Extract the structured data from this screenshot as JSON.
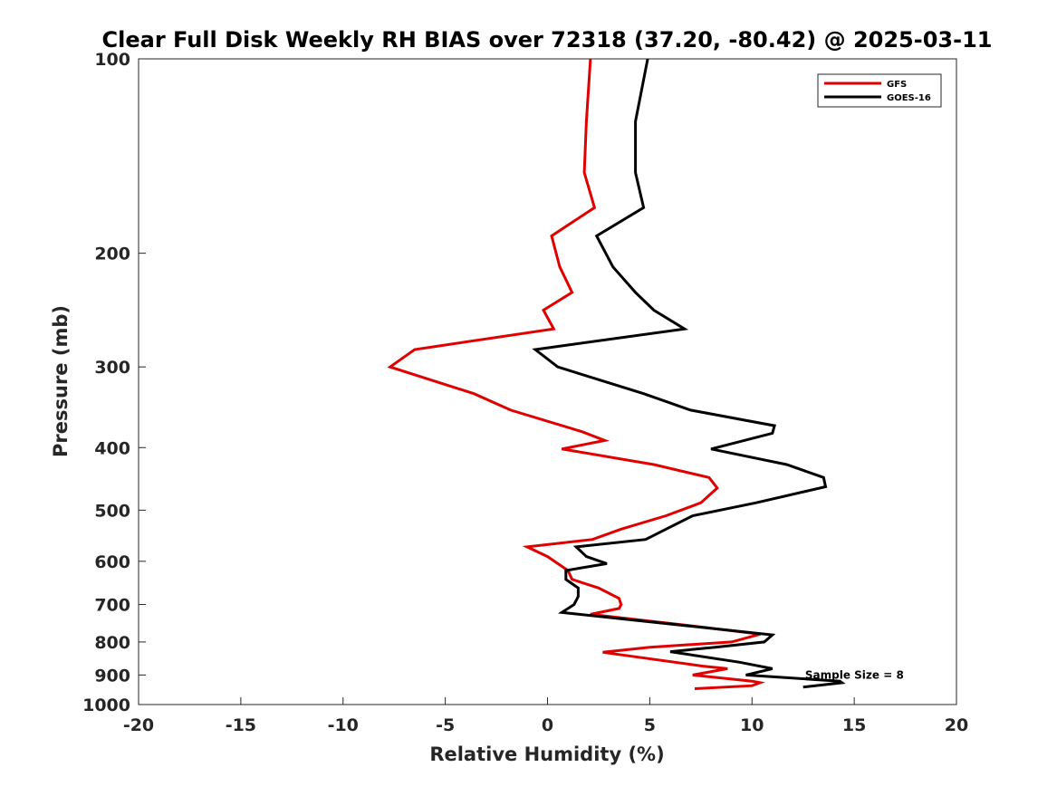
{
  "chart_data": {
    "type": "line",
    "title": "Clear Full Disk Weekly RH BIAS over 72318 (37.20, -80.42) @ 2025-03-11",
    "xlabel": "Relative Humidity (%)",
    "ylabel": "Pressure (mb)",
    "xlim": [
      -20,
      20
    ],
    "ylim": [
      1000,
      100
    ],
    "yscale": "log",
    "grid": false,
    "legend_position": "top-right",
    "x_ticks": [
      -20,
      -15,
      -10,
      -5,
      0,
      5,
      10,
      15,
      20
    ],
    "x_tick_labels": [
      "-20",
      "-15",
      "-10",
      "-5",
      "0",
      "5",
      "10",
      "15",
      "20"
    ],
    "y_ticks": [
      100,
      200,
      300,
      400,
      500,
      600,
      700,
      800,
      900,
      1000
    ],
    "y_tick_labels": [
      "100",
      "200",
      "300",
      "400",
      "500",
      "600",
      "700",
      "800",
      "900",
      "1000"
    ],
    "annotation": {
      "text": "Sample Size = 8",
      "x": 12.6,
      "p": 900
    },
    "series": [
      {
        "name": "GFS",
        "color": "#e00000",
        "points": [
          [
            2.1,
            100
          ],
          [
            1.9,
            125
          ],
          [
            1.8,
            150
          ],
          [
            2.3,
            170
          ],
          [
            0.2,
            188
          ],
          [
            0.6,
            210
          ],
          [
            1.2,
            230
          ],
          [
            -0.2,
            245
          ],
          [
            0.3,
            262
          ],
          [
            -6.5,
            282
          ],
          [
            -7.7,
            300
          ],
          [
            -3.6,
            330
          ],
          [
            -1.8,
            350
          ],
          [
            1.7,
            378
          ],
          [
            2.8,
            390
          ],
          [
            0.7,
            402
          ],
          [
            5.2,
            425
          ],
          [
            7.9,
            445
          ],
          [
            8.3,
            462
          ],
          [
            7.5,
            487
          ],
          [
            5.8,
            510
          ],
          [
            3.6,
            535
          ],
          [
            2.2,
            555
          ],
          [
            -1.0,
            570
          ],
          [
            0.0,
            590
          ],
          [
            1.0,
            620
          ],
          [
            1.2,
            640
          ],
          [
            2.5,
            660
          ],
          [
            3.5,
            685
          ],
          [
            3.6,
            700
          ],
          [
            3.5,
            710
          ],
          [
            2.1,
            725
          ],
          [
            7.0,
            755
          ],
          [
            10.4,
            778
          ],
          [
            9.0,
            800
          ],
          [
            5.0,
            815
          ],
          [
            2.7,
            830
          ],
          [
            7.6,
            872
          ],
          [
            8.8,
            880
          ],
          [
            7.1,
            900
          ],
          [
            10.0,
            920
          ],
          [
            10.4,
            925
          ],
          [
            10.0,
            935
          ],
          [
            7.2,
            945
          ]
        ]
      },
      {
        "name": "GOES-16",
        "color": "#000000",
        "points": [
          [
            4.9,
            100
          ],
          [
            4.3,
            125
          ],
          [
            4.3,
            150
          ],
          [
            4.7,
            170
          ],
          [
            2.4,
            188
          ],
          [
            3.2,
            210
          ],
          [
            4.3,
            230
          ],
          [
            5.2,
            245
          ],
          [
            6.7,
            262
          ],
          [
            -0.6,
            282
          ],
          [
            0.5,
            300
          ],
          [
            4.7,
            330
          ],
          [
            7.0,
            350
          ],
          [
            11.1,
            370
          ],
          [
            11.0,
            380
          ],
          [
            8.0,
            402
          ],
          [
            11.7,
            425
          ],
          [
            13.5,
            445
          ],
          [
            13.6,
            460
          ],
          [
            10.2,
            487
          ],
          [
            7.1,
            510
          ],
          [
            5.8,
            535
          ],
          [
            4.8,
            555
          ],
          [
            1.4,
            570
          ],
          [
            1.9,
            590
          ],
          [
            2.9,
            605
          ],
          [
            0.9,
            620
          ],
          [
            0.9,
            640
          ],
          [
            1.5,
            660
          ],
          [
            1.5,
            680
          ],
          [
            1.3,
            700
          ],
          [
            0.7,
            720
          ],
          [
            6.8,
            755
          ],
          [
            11.0,
            780
          ],
          [
            10.6,
            800
          ],
          [
            8.2,
            815
          ],
          [
            6.0,
            828
          ],
          [
            9.4,
            860
          ],
          [
            11.0,
            880
          ],
          [
            9.7,
            900
          ],
          [
            14.3,
            920
          ],
          [
            14.4,
            925
          ],
          [
            12.5,
            940
          ]
        ]
      }
    ]
  }
}
